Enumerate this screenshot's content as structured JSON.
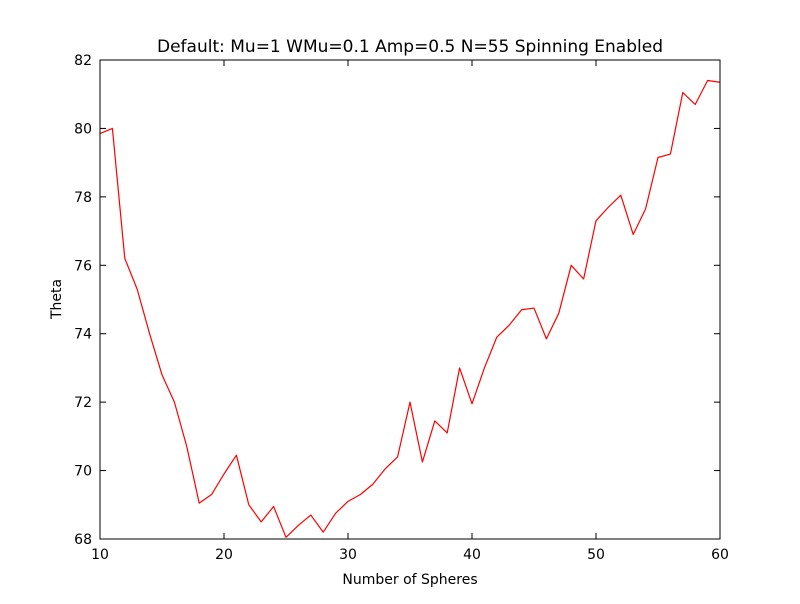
{
  "chart_data": {
    "type": "line",
    "title": "Default: Mu=1 WMu=0.1 Amp=0.5 N=55 Spinning Enabled",
    "xlabel": "Number of Spheres",
    "ylabel": "Theta",
    "xlim": [
      10,
      60
    ],
    "ylim": [
      68,
      82
    ],
    "xticks": [
      10,
      20,
      30,
      40,
      50,
      60
    ],
    "yticks": [
      68,
      70,
      72,
      74,
      76,
      78,
      80,
      82
    ],
    "grid": false,
    "series": [
      {
        "color": "#ff0000",
        "x": [
          10,
          11,
          12,
          13,
          14,
          15,
          16,
          17,
          18,
          19,
          20,
          21,
          22,
          23,
          24,
          25,
          26,
          27,
          28,
          29,
          30,
          31,
          32,
          33,
          34,
          35,
          36,
          37,
          38,
          39,
          40,
          41,
          42,
          43,
          44,
          45,
          46,
          47,
          48,
          49,
          50,
          51,
          52,
          53,
          54,
          55,
          56,
          57,
          58,
          59,
          60
        ],
        "y": [
          79.85,
          80.0,
          76.2,
          75.3,
          74.0,
          72.8,
          72.0,
          70.7,
          69.05,
          69.3,
          69.9,
          70.45,
          69.0,
          68.5,
          68.95,
          68.05,
          68.4,
          68.7,
          68.2,
          68.75,
          69.1,
          69.3,
          69.6,
          70.05,
          70.4,
          72.0,
          70.25,
          71.45,
          71.1,
          73.0,
          71.95,
          73.0,
          73.9,
          74.25,
          74.7,
          74.75,
          73.85,
          74.6,
          76.0,
          75.6,
          77.3,
          77.7,
          78.05,
          76.9,
          77.65,
          79.15,
          79.25,
          81.05,
          80.7,
          81.4,
          81.35
        ]
      }
    ]
  }
}
